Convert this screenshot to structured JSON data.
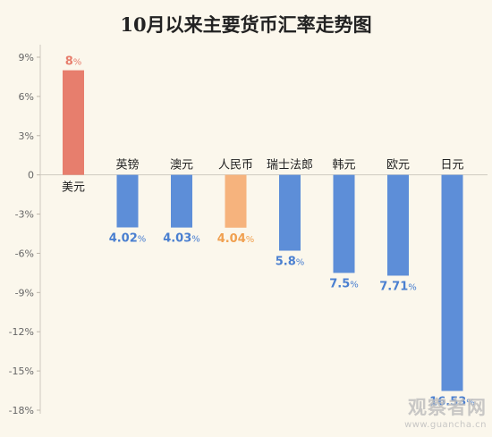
{
  "chart_data": {
    "type": "bar",
    "title": "10月以来主要货币汇率走势图",
    "categories": [
      "美元",
      "英镑",
      "澳元",
      "人民币",
      "瑞士法郎",
      "韩元",
      "欧元",
      "日元"
    ],
    "values": [
      8,
      -4.02,
      -4.03,
      -4.04,
      -5.8,
      -7.5,
      -7.71,
      -16.53
    ],
    "value_labels": [
      "8%",
      "4.02%",
      "4.03%",
      "4.04%",
      "5.8%",
      "7.5%",
      "7.71%",
      "16.53%"
    ],
    "colors": [
      "#e77e6d",
      "#5d8ed8",
      "#5d8ed8",
      "#f6b37d",
      "#5d8ed8",
      "#5d8ed8",
      "#5d8ed8",
      "#5d8ed8"
    ],
    "label_colors": [
      "#e77e6d",
      "#4a7fd0",
      "#4a7fd0",
      "#f0a050",
      "#4a7fd0",
      "#4a7fd0",
      "#4a7fd0",
      "#4a7fd0"
    ],
    "yticks": [
      "9%",
      "6%",
      "3%",
      "0",
      "-3%",
      "-6%",
      "-9%",
      "-12%",
      "-15%",
      "-18%"
    ],
    "ytick_values": [
      9,
      6,
      3,
      0,
      -3,
      -6,
      -9,
      -12,
      -15,
      -18
    ],
    "ylim": [
      -18,
      9
    ],
    "grid": false
  },
  "watermark": {
    "text": "观察者网",
    "url": "www.guancha.cn"
  }
}
